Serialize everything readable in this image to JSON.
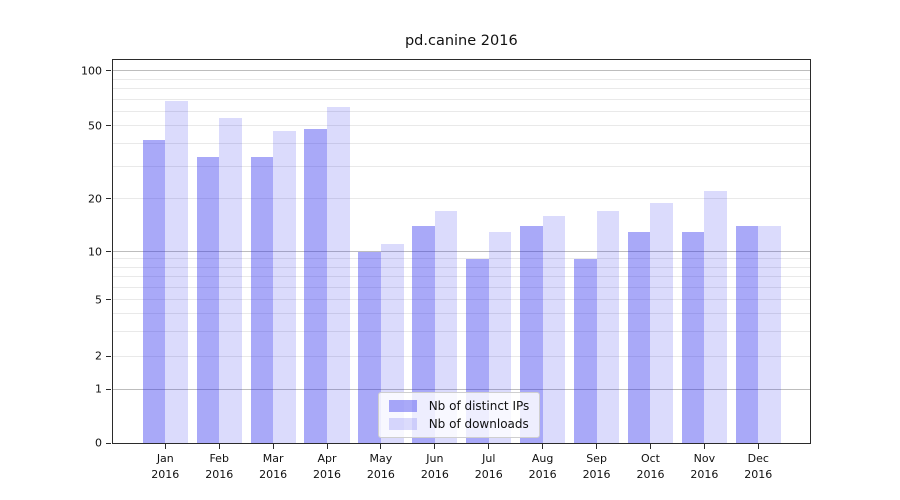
{
  "title": "pd.canine 2016",
  "x_axis": {
    "months": [
      "Jan",
      "Feb",
      "Mar",
      "Apr",
      "May",
      "Jun",
      "Jul",
      "Aug",
      "Sep",
      "Oct",
      "Nov",
      "Dec"
    ],
    "year": "2016"
  },
  "y_axis": {
    "tick_labels": [
      "100",
      "50",
      "20",
      "10",
      "5",
      "2",
      "1",
      "0"
    ]
  },
  "legend": {
    "items": [
      "Nb of distinct IPs",
      "Nb of downloads"
    ]
  },
  "colors": {
    "ips_bar": "rgba(40,40,238,0.40)",
    "downloads_bar": "rgba(40,40,238,0.17)",
    "grid_major": "#bdbdbd",
    "grid_minor": "#e9e9e9",
    "spine": "#2b2b2b"
  },
  "chart_data": {
    "type": "bar",
    "title": "pd.canine 2016",
    "categories": [
      "Jan 2016",
      "Feb 2016",
      "Mar 2016",
      "Apr 2016",
      "May 2016",
      "Jun 2016",
      "Jul 2016",
      "Aug 2016",
      "Sep 2016",
      "Oct 2016",
      "Nov 2016",
      "Dec 2016"
    ],
    "series": [
      {
        "name": "Nb of distinct IPs",
        "values": [
          42,
          34,
          34,
          48,
          10,
          14,
          9,
          14,
          9,
          13,
          13,
          14
        ]
      },
      {
        "name": "Nb of downloads",
        "values": [
          68,
          55,
          47,
          63,
          11,
          17,
          13,
          16,
          17,
          19,
          22,
          14
        ]
      }
    ],
    "yscale": "symlog",
    "yticks": [
      0,
      1,
      2,
      5,
      10,
      20,
      50,
      100
    ],
    "ylim": [
      0,
      115
    ],
    "xlabel": "",
    "ylabel": "",
    "grid": true,
    "legend_position": "lower center"
  }
}
